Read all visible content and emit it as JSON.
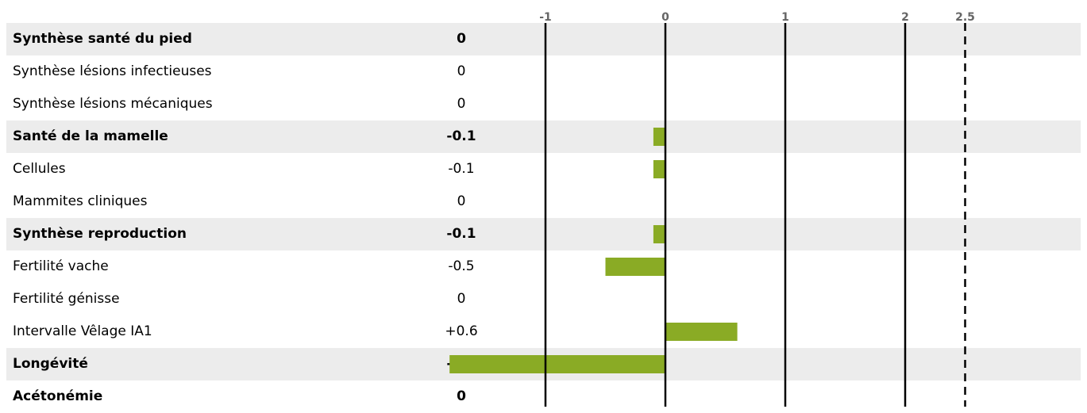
{
  "chart_data": {
    "type": "bar",
    "orientation": "horizontal",
    "title": "",
    "xlabel": "",
    "ylabel": "",
    "xlim": [
      -1,
      2.5
    ],
    "xticks": [
      -1,
      0,
      1,
      2,
      2.5
    ],
    "tick_labels": [
      "-1",
      "0",
      "1",
      "2",
      "2.5"
    ],
    "dashed_reference": 2.5,
    "bar_color": "#8aab25",
    "shade_color": "#ececec",
    "grid": true,
    "rows": [
      {
        "label": "Synthèse santé du pied",
        "display": "0",
        "value": 0,
        "bold": true,
        "shaded": true
      },
      {
        "label": "Synthèse lésions infectieuses",
        "display": "0",
        "value": 0,
        "bold": false,
        "shaded": false
      },
      {
        "label": "Synthèse lésions mécaniques",
        "display": "0",
        "value": 0,
        "bold": false,
        "shaded": false
      },
      {
        "label": "Santé de la mamelle",
        "display": "-0.1",
        "value": -0.1,
        "bold": true,
        "shaded": true
      },
      {
        "label": "Cellules",
        "display": "-0.1",
        "value": -0.1,
        "bold": false,
        "shaded": false
      },
      {
        "label": "Mammites cliniques",
        "display": "0",
        "value": 0,
        "bold": false,
        "shaded": false
      },
      {
        "label": "Synthèse reproduction",
        "display": "-0.1",
        "value": -0.1,
        "bold": true,
        "shaded": true
      },
      {
        "label": "Fertilité vache",
        "display": "-0.5",
        "value": -0.5,
        "bold": false,
        "shaded": false
      },
      {
        "label": "Fertilité génisse",
        "display": "0",
        "value": 0,
        "bold": false,
        "shaded": false
      },
      {
        "label": "Intervalle Vêlage IA1",
        "display": "+0.6",
        "value": 0.6,
        "bold": false,
        "shaded": false
      },
      {
        "label": "Longévité",
        "display": "-1.8",
        "value": -1.8,
        "bold": true,
        "shaded": true
      },
      {
        "label": "Acétonémie",
        "display": "0",
        "value": 0,
        "bold": true,
        "shaded": false
      }
    ]
  }
}
